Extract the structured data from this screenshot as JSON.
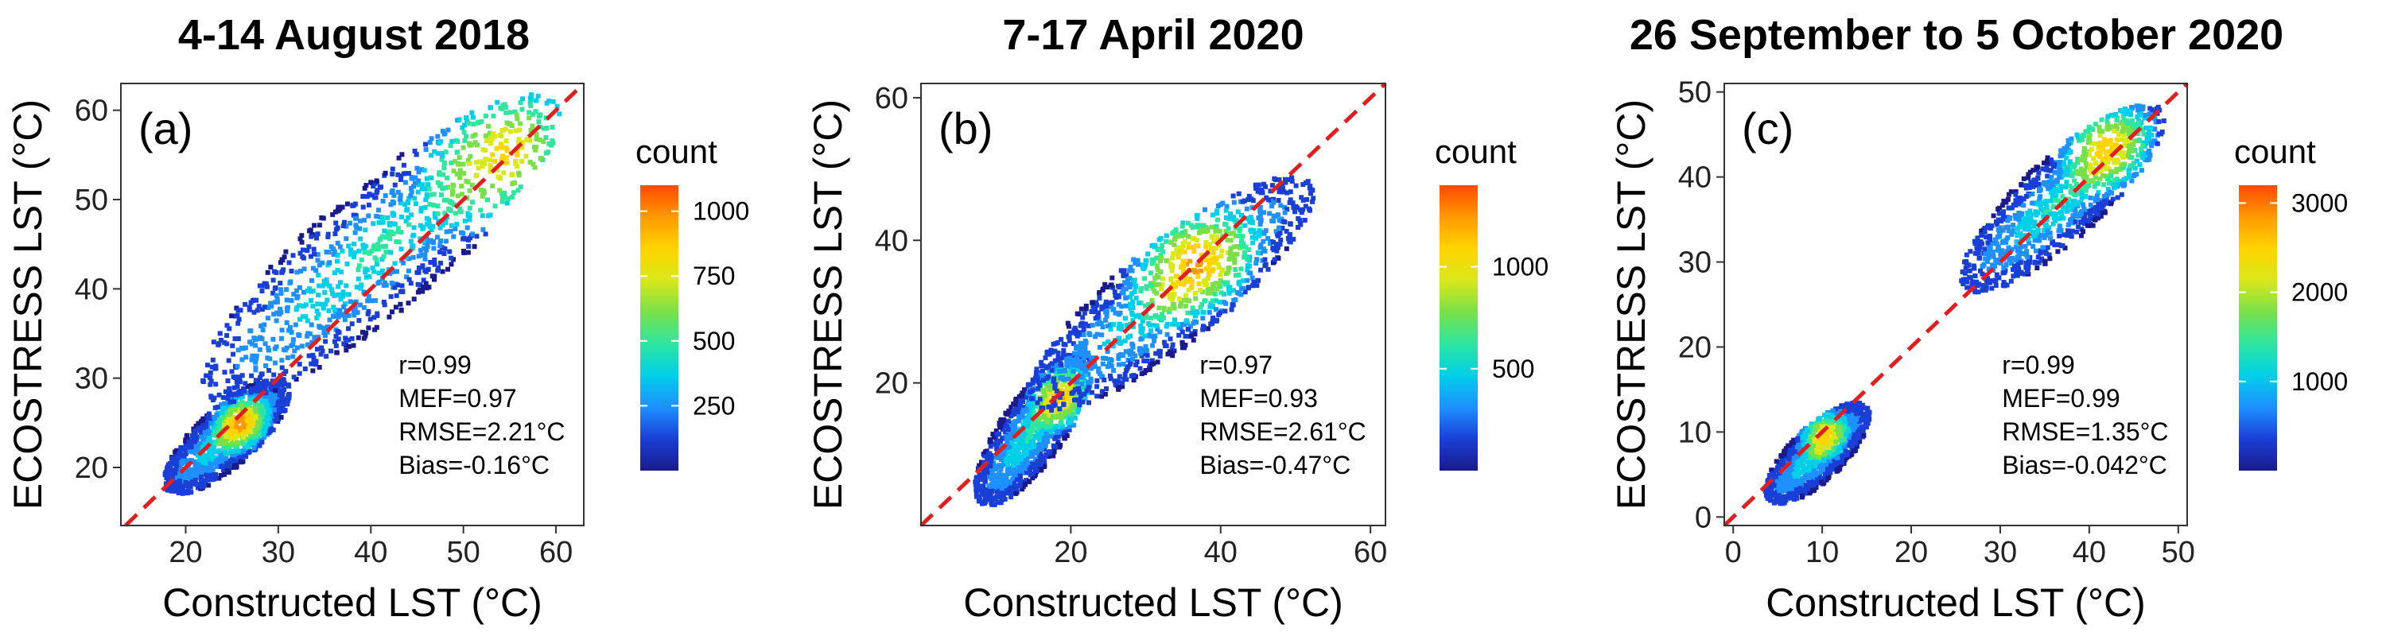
{
  "figure": {
    "xlabel": "Constructed LST (°C)",
    "ylabel": "ECOSTRESS LST (°C)",
    "legend_title": "count",
    "colormap": [
      "#1a1a8c",
      "#1a3fd6",
      "#1e90ff",
      "#00cfe8",
      "#2ee6a0",
      "#7ae04a",
      "#d9e81a",
      "#ffd400",
      "#ff9a00",
      "#ff4a00"
    ],
    "reference_line_color": "#e02020"
  },
  "chart_data": [
    {
      "type": "heatmap",
      "title": "4-14 August 2018",
      "panel_label": "(a)",
      "xlim": [
        13,
        63
      ],
      "ylim": [
        13.5,
        63
      ],
      "xticks": [
        20,
        30,
        40,
        50,
        60
      ],
      "yticks": [
        20,
        30,
        40,
        50,
        60
      ],
      "reference_line": "1:1",
      "stats": {
        "r": "r=0.99",
        "mef": "MEF=0.97",
        "rmse": "RMSE=2.21°C",
        "bias": "Bias=-0.16°C"
      },
      "clusters": [
        {
          "x": [
            18,
            31
          ],
          "y": [
            17.5,
            29.5
          ],
          "peak": [
            26,
            25
          ]
        },
        {
          "x": [
            22,
            60
          ],
          "y": [
            28,
            61
          ],
          "peak": [
            55,
            55
          ]
        }
      ],
      "colorbar": {
        "max": 1100,
        "ticks": [
          250,
          500,
          750,
          1000
        ]
      }
    },
    {
      "type": "heatmap",
      "title": "7-17 April 2020",
      "panel_label": "(b)",
      "xlim": [
        0,
        62
      ],
      "ylim": [
        0,
        62
      ],
      "xticks": [
        20,
        40,
        60
      ],
      "yticks": [
        20,
        40,
        60
      ],
      "reference_line": "1:1",
      "stats": {
        "r": "r=0.97",
        "mef": "MEF=0.93",
        "rmse": "RMSE=2.61°C",
        "bias": "Bias=-0.47°C"
      },
      "clusters": [
        {
          "x": [
            8,
            22
          ],
          "y": [
            3,
            24
          ],
          "peak": [
            19,
            18
          ]
        },
        {
          "x": [
            15,
            52
          ],
          "y": [
            17,
            48
          ],
          "peak": [
            36,
            38
          ]
        }
      ],
      "colorbar": {
        "max": 1400,
        "ticks": [
          500,
          1000
        ]
      }
    },
    {
      "type": "heatmap",
      "title": "26 September to 5 October 2020",
      "panel_label": "(c)",
      "xlim": [
        -1,
        51
      ],
      "ylim": [
        -1,
        51
      ],
      "xticks": [
        0,
        10,
        20,
        30,
        40,
        50
      ],
      "yticks": [
        0,
        10,
        20,
        30,
        40,
        50
      ],
      "reference_line": "1:1",
      "stats": {
        "r": "r=0.99",
        "mef": "MEF=0.99",
        "rmse": "RMSE=1.35°C",
        "bias": "Bias=-0.042°C"
      },
      "clusters": [
        {
          "x": [
            4,
            15
          ],
          "y": [
            2,
            13
          ],
          "peak": [
            10,
            10
          ]
        },
        {
          "x": [
            26,
            48
          ],
          "y": [
            27,
            48
          ],
          "peak": [
            42,
            44
          ]
        }
      ],
      "colorbar": {
        "max": 3200,
        "ticks": [
          1000,
          2000,
          3000
        ]
      }
    }
  ]
}
